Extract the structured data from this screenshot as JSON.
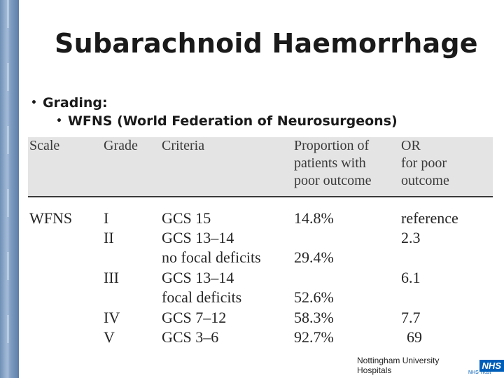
{
  "slide": {
    "title": "Subarachnoid Haemorrhage",
    "bullets": {
      "level1": "Grading:",
      "level2": "WFNS (World Federation of Neurosurgeons)"
    }
  },
  "table": {
    "headers": {
      "scale": "Scale",
      "grade": "Grade",
      "criteria": "Criteria",
      "proportion": [
        "Proportion of",
        "patients with",
        "poor outcome"
      ],
      "or": [
        "OR",
        "for poor",
        "outcome"
      ]
    },
    "scale_label": "WFNS",
    "rows": [
      {
        "grade": "I",
        "criteria": [
          "GCS 15"
        ],
        "proportion": "14.8%",
        "or": "reference"
      },
      {
        "grade": "II",
        "criteria": [
          "GCS 13–14",
          "no focal deficits"
        ],
        "proportion": "29.4%",
        "or": "2.3"
      },
      {
        "grade": "III",
        "criteria": [
          "GCS 13–14",
          "focal deficits"
        ],
        "proportion": "52.6%",
        "or": "6.1"
      },
      {
        "grade": "IV",
        "criteria": [
          "GCS 7–12"
        ],
        "proportion": "58.3%",
        "or": "7.7"
      },
      {
        "grade": "V",
        "criteria": [
          "GCS 3–6"
        ],
        "proportion": "92.7%",
        "or": "69"
      }
    ]
  },
  "footer": {
    "organization": "Nottingham University Hospitals",
    "nhs_logo": "NHS",
    "nhs_trust": "NHS Trust",
    "colors": {
      "nhs_blue": "#005eb8",
      "side_bar": "#7c9bc0"
    }
  }
}
